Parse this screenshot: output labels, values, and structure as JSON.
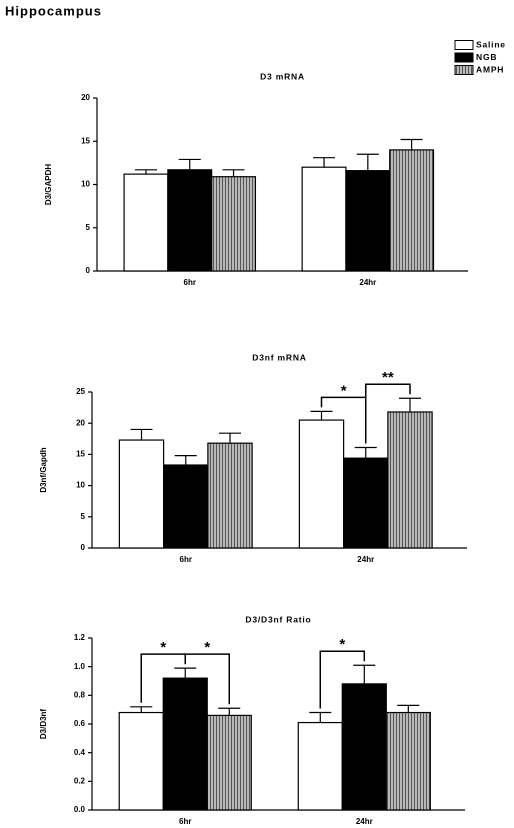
{
  "title": "Hippocampus",
  "chart_data": [
    {
      "type": "bar",
      "title": "D3 mRNA",
      "y_label": "D3/GAPDH",
      "categories": [
        "6hr",
        "24hr"
      ],
      "series": [
        {
          "name": "Saline",
          "color": "#ffffff",
          "values": [
            11.2,
            12.0
          ],
          "errors": [
            0.5,
            1.1
          ]
        },
        {
          "name": "NGB",
          "color": "#000000",
          "values": [
            11.7,
            11.6
          ],
          "errors": [
            1.2,
            1.9
          ]
        },
        {
          "name": "AMPH",
          "color": "#b8b8b8",
          "values": [
            10.9,
            14.0
          ],
          "errors": [
            0.8,
            1.2
          ]
        }
      ],
      "ylim": [
        0,
        20
      ],
      "yticks": [
        0,
        5,
        10,
        15,
        20
      ],
      "annotations": []
    },
    {
      "type": "bar",
      "title": "D3nf mRNA",
      "y_label": "D3nf/Gapdh",
      "categories": [
        "6hr",
        "24hr"
      ],
      "series": [
        {
          "name": "Saline",
          "color": "#ffffff",
          "values": [
            17.3,
            20.5
          ],
          "errors": [
            1.7,
            1.4
          ]
        },
        {
          "name": "NGB",
          "color": "#000000",
          "values": [
            13.3,
            14.4
          ],
          "errors": [
            1.5,
            1.7
          ]
        },
        {
          "name": "AMPH",
          "color": "#b8b8b8",
          "values": [
            16.8,
            21.8
          ],
          "errors": [
            1.6,
            2.2
          ]
        }
      ],
      "ylim": [
        0,
        25
      ],
      "yticks": [
        0,
        5,
        10,
        15,
        20,
        25
      ],
      "annotations": [
        {
          "label": "*",
          "category": 1,
          "series": [
            0,
            1
          ]
        },
        {
          "label": "**",
          "category": 1,
          "series": [
            1,
            2
          ]
        }
      ]
    },
    {
      "type": "bar",
      "title": "D3/D3nf Ratio",
      "y_label": "D3/D3nf",
      "categories": [
        "6hr",
        "24hr"
      ],
      "series": [
        {
          "name": "Saline",
          "color": "#ffffff",
          "values": [
            0.68,
            0.61
          ],
          "errors": [
            0.04,
            0.07
          ]
        },
        {
          "name": "NGB",
          "color": "#000000",
          "values": [
            0.92,
            0.88
          ],
          "errors": [
            0.07,
            0.13
          ]
        },
        {
          "name": "AMPH",
          "color": "#b8b8b8",
          "values": [
            0.66,
            0.68
          ],
          "errors": [
            0.05,
            0.05
          ]
        }
      ],
      "ylim": [
        0,
        1.2
      ],
      "yticks": [
        {
          "value": 0,
          "label": "0.0"
        },
        0.2,
        0.4,
        0.6,
        0.8,
        {
          "value": 1,
          "label": "1.0"
        },
        1.2
      ],
      "annotations": [
        {
          "label": "*",
          "category": 0,
          "series": [
            0,
            1
          ]
        },
        {
          "label": "*",
          "category": 0,
          "series": [
            1,
            2
          ]
        },
        {
          "label": "*",
          "category": 1,
          "series": [
            0,
            1
          ]
        }
      ]
    }
  ]
}
